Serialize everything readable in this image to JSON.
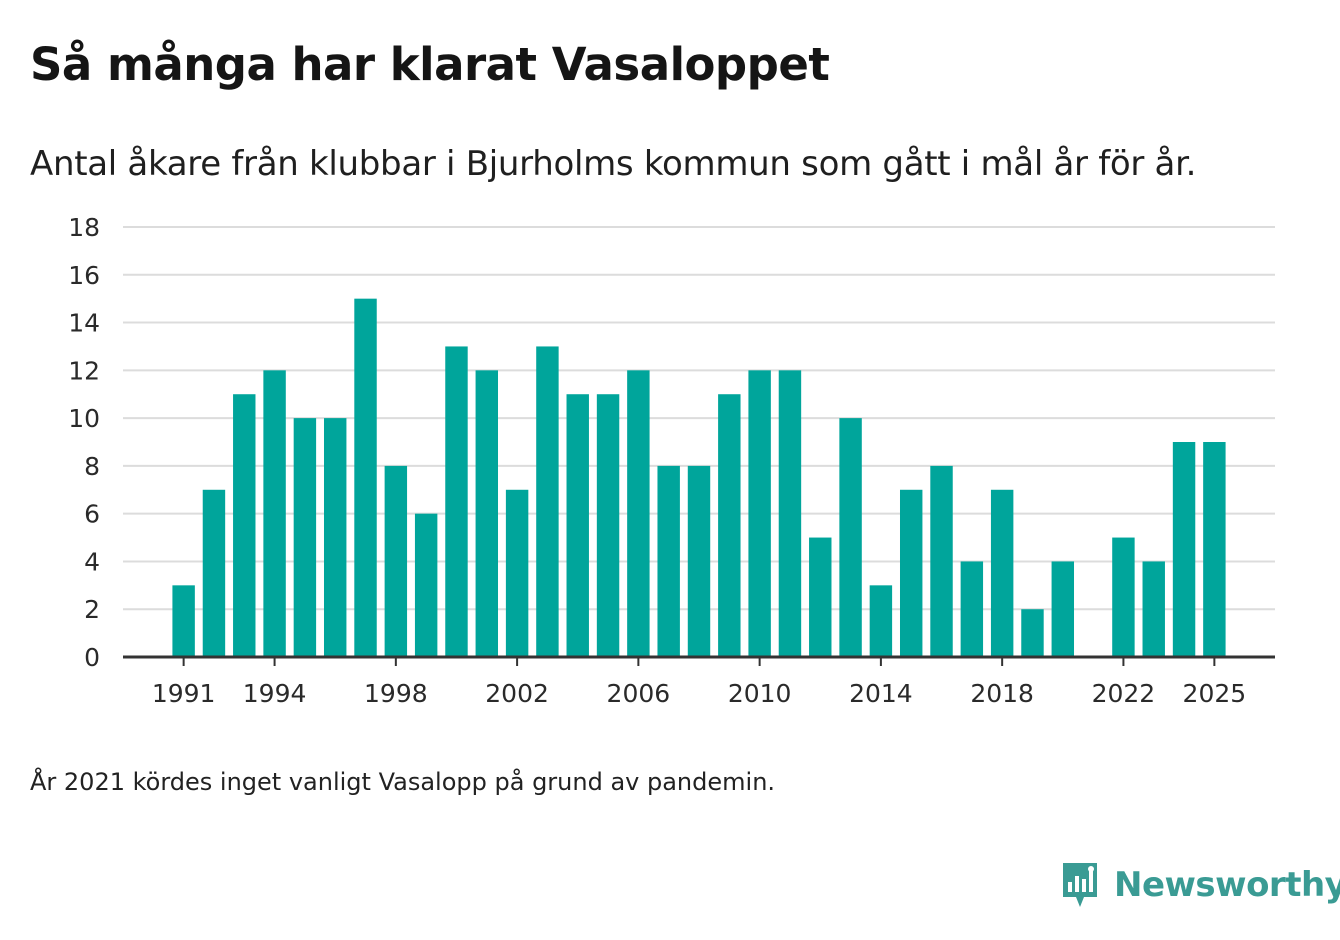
{
  "title": "Så många har klarat Vasaloppet",
  "subtitle": "Antal åkare från klubbar i Bjurholms kommun som gått i mål år för år.",
  "note": "År 2021 kördes inget vanligt Vasalopp på grund av pandemin.",
  "brand": {
    "name": "Newsworthy",
    "logo_icon": "newsworthy-logo-icon",
    "color": "#3a9b94"
  },
  "colors": {
    "bar": "#00a59b",
    "grid": "#dcdcdc",
    "axis": "#333333"
  },
  "chart_data": {
    "type": "bar",
    "title": "Så många har klarat Vasaloppet",
    "xlabel": "",
    "ylabel": "",
    "x": [
      1991,
      1992,
      1993,
      1994,
      1995,
      1996,
      1997,
      1998,
      1999,
      2000,
      2001,
      2002,
      2003,
      2004,
      2005,
      2006,
      2007,
      2008,
      2009,
      2010,
      2011,
      2012,
      2013,
      2014,
      2015,
      2016,
      2017,
      2018,
      2019,
      2020,
      2022,
      2023,
      2024,
      2025
    ],
    "values": [
      3,
      7,
      11,
      12,
      10,
      10,
      15,
      8,
      6,
      13,
      12,
      7,
      13,
      11,
      11,
      12,
      8,
      8,
      11,
      12,
      12,
      5,
      10,
      3,
      7,
      8,
      4,
      7,
      2,
      4,
      5,
      4,
      9,
      9
    ],
    "xlim": [
      1989,
      2027
    ],
    "ylim": [
      0,
      18
    ],
    "yticks": [
      "0",
      "2",
      "4",
      "6",
      "8",
      "10",
      "12",
      "14",
      "16",
      "18"
    ],
    "xticks": [
      "1991",
      "1994",
      "1998",
      "2002",
      "2006",
      "2010",
      "2014",
      "2018",
      "2022",
      "2025"
    ],
    "grid": true
  }
}
